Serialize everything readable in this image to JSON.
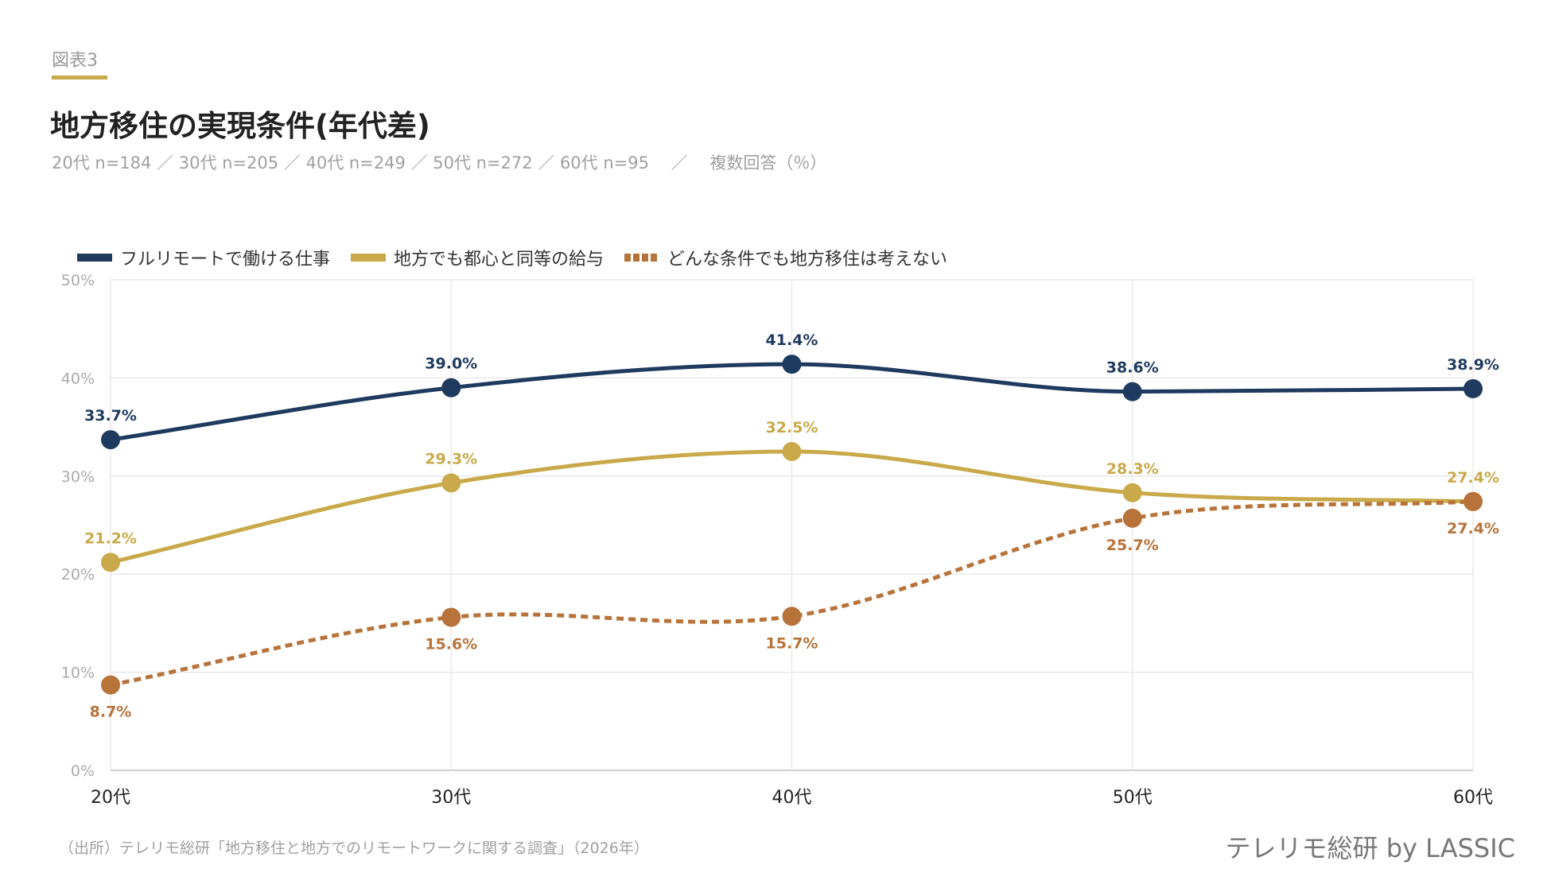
{
  "figure_label": "図表3",
  "title": "地方移住の実現条件(年代差)",
  "subtitle": "20代 n=184 ／ 30代 n=205 ／ 40代 n=249 ／ 50代 n=272 ／ 60代 n=95 　／　 複数回答（％）",
  "footer": {
    "source": "（出所）テレリモ総研「地方移住と地方でのリモートワークに関する調査」（2026年）",
    "logo": "テレリモ総研 by LASSIC"
  },
  "chart_data": {
    "type": "line",
    "categories": [
      "20代",
      "30代",
      "40代",
      "50代",
      "60代"
    ],
    "ylim": [
      0,
      50
    ],
    "yticks": [
      "0%",
      "10%",
      "20%",
      "30%",
      "40%",
      "50%"
    ],
    "grid": true,
    "legend_position": "top-left",
    "series": [
      {
        "name": "フルリモートで働ける仕事",
        "values": [
          33.7,
          39.0,
          41.4,
          38.6,
          38.9
        ],
        "labels": [
          "33.7%",
          "39.0%",
          "41.4%",
          "38.6%",
          "38.9%"
        ],
        "color": "#1f3a5f",
        "style": "solid"
      },
      {
        "name": "地方でも都心と同等の給与",
        "values": [
          21.2,
          29.3,
          32.5,
          28.3,
          27.4
        ],
        "labels": [
          "21.2%",
          "29.3%",
          "32.5%",
          "28.3%",
          "27.4%"
        ],
        "color": "#c9a94a",
        "style": "solid"
      },
      {
        "name": "どんな条件でも地方移住は考えない",
        "values": [
          8.7,
          15.6,
          15.7,
          25.7,
          27.4
        ],
        "labels": [
          "8.7%",
          "15.6%",
          "15.7%",
          "25.7%",
          "27.4%"
        ],
        "color": "#b8733a",
        "style": "dashed"
      }
    ]
  }
}
